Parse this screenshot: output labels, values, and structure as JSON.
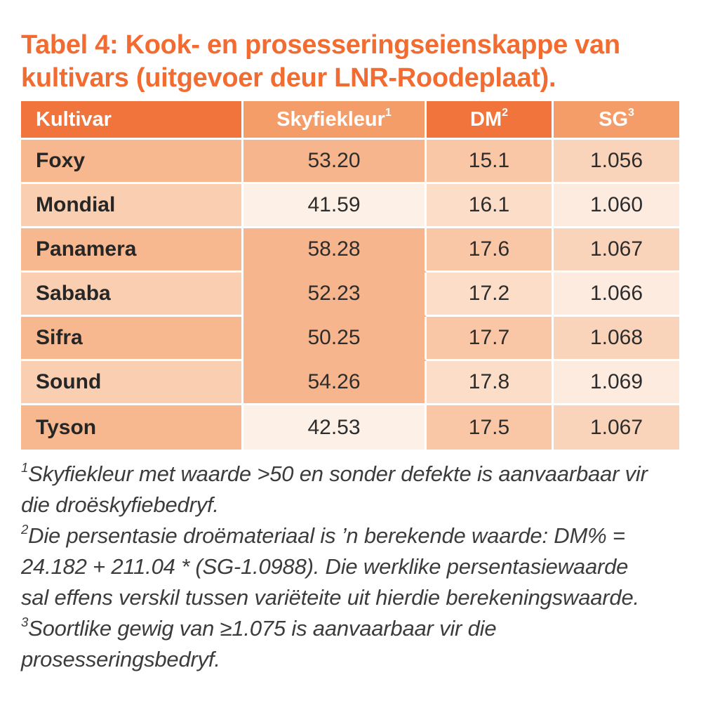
{
  "title": {
    "text": "Tabel 4: Kook- en prosesseringseienskappe van kultivars (uitgevoer deur LNR-Roodeplaat)."
  },
  "table": {
    "columns": [
      {
        "label": "Kultivar",
        "sup": ""
      },
      {
        "label": "Skyfiekleur",
        "sup": "1"
      },
      {
        "label": "DM",
        "sup": "2"
      },
      {
        "label": "SG",
        "sup": "3"
      }
    ],
    "rows": [
      {
        "kultivar": "Foxy",
        "skyfiekleur": "53.20",
        "dm": "15.1",
        "sg": "1.056"
      },
      {
        "kultivar": "Mondial",
        "skyfiekleur": "41.59",
        "dm": "16.1",
        "sg": "1.060"
      },
      {
        "kultivar": "Panamera",
        "skyfiekleur": "58.28",
        "dm": "17.6",
        "sg": "1.067"
      },
      {
        "kultivar": "Sababa",
        "skyfiekleur": "52.23",
        "dm": "17.2",
        "sg": "1.066"
      },
      {
        "kultivar": "Sifra",
        "skyfiekleur": "50.25",
        "dm": "17.7",
        "sg": "1.068"
      },
      {
        "kultivar": "Sound",
        "skyfiekleur": "54.26",
        "dm": "17.8",
        "sg": "1.069"
      },
      {
        "kultivar": "Tyson",
        "skyfiekleur": "42.53",
        "dm": "17.5",
        "sg": "1.067"
      }
    ]
  },
  "footnotes": [
    {
      "sup": "1",
      "text": "Skyfiekleur met waarde >50 en sonder defekte is aanvaarbaar vir die droëskyfiebedryf."
    },
    {
      "sup": "2",
      "text": "Die persentasie droëmateriaal is ’n berekende waarde: DM% = 24.182 + 211.04 * (SG-1.0988). Die werklike persentasiewaarde sal effens verskil tussen variëteite uit hierdie berekeningswaarde."
    },
    {
      "sup": "3",
      "text": "Soortlike gewig van ≥1.075 is aanvaarbaar vir die prosesseringsbedryf."
    }
  ],
  "colors": {
    "title_orange": "#F26C31",
    "header_dark": "#F0743B",
    "header_light": "#F59D69",
    "col1_odd": "#F7B88F",
    "col1_even": "#FACFB1",
    "col2_high": "#F6B58C",
    "col2_low": "#FDF0E7",
    "col3_odd": "#F9C6A6",
    "col3_even": "#FBDDC8",
    "col4_odd": "#FAD3BB",
    "col4_even": "#FDEBE0",
    "text_dark": "#2D2D2D",
    "footnote_gray": "#3C3C3C"
  }
}
